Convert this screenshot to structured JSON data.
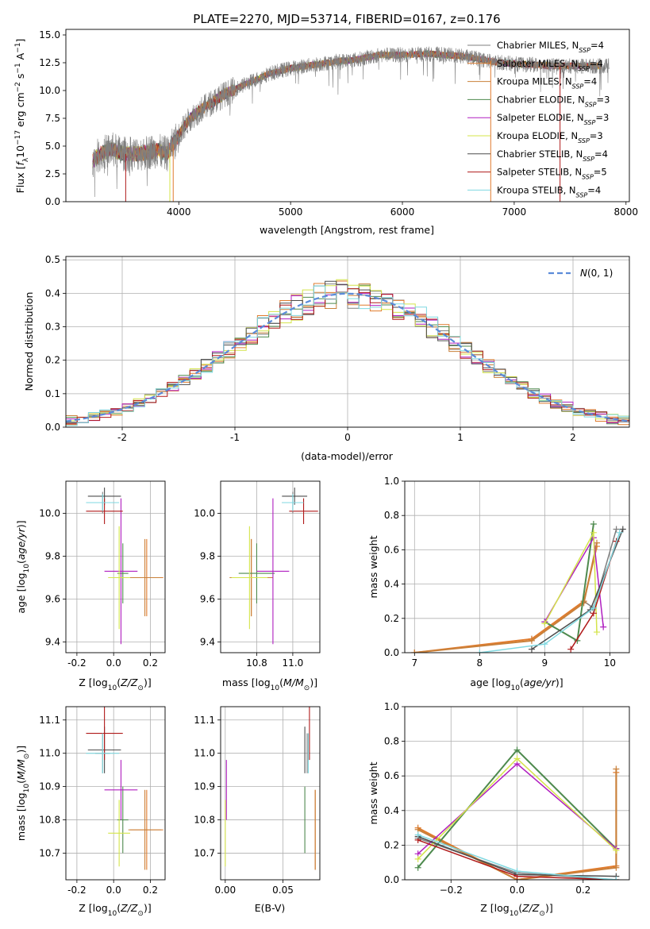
{
  "chart_data": [
    {
      "id": "spectrum",
      "type": "line",
      "title": "PLATE=2270, MJD=53714, FIBERID=0167, z=0.176",
      "xlabel": "wavelength [Angstrom, rest frame]",
      "ylabel": "Flux [f_λ10^-17 erg cm^-2 s^-1 A^-1]",
      "xlim": [
        2990,
        8030
      ],
      "ylim": [
        0,
        15.5
      ],
      "xticks": [
        4000,
        5000,
        6000,
        7000,
        8000
      ],
      "yticks": [
        0.0,
        2.5,
        5.0,
        7.5,
        10.0,
        12.5,
        15.0
      ],
      "legend_position": "top-right",
      "series": [
        {
          "name": "Chabrier MILES",
          "nssp": "4",
          "color": "#7f7f7f"
        },
        {
          "name": "Salpeter MILES",
          "nssp": "4",
          "color": "#e07b2d"
        },
        {
          "name": "Kroupa MILES",
          "nssp": "4",
          "color": "#c9803a"
        },
        {
          "name": "Chabrier ELODIE",
          "nssp": "3",
          "color": "#4e8a4e"
        },
        {
          "name": "Salpeter ELODIE",
          "nssp": "3",
          "color": "#b01fc0"
        },
        {
          "name": "Kroupa ELODIE",
          "nssp": "3",
          "color": "#d4e44a"
        },
        {
          "name": "Chabrier STELIB",
          "nssp": "4",
          "color": "#4d4d4d"
        },
        {
          "name": "Salpeter STELIB",
          "nssp": "5",
          "color": "#b01a1a"
        },
        {
          "name": "Kroupa STELIB",
          "nssp": "4",
          "color": "#7fd8e0"
        }
      ],
      "continuum": {
        "x": [
          3230,
          3300,
          3400,
          3500,
          3600,
          3700,
          3800,
          3900,
          4000,
          4100,
          4200,
          4400,
          4600,
          4800,
          5000,
          5200,
          5400,
          5600,
          5800,
          6000,
          6200,
          6400,
          6600,
          6800,
          7000,
          7200,
          7400,
          7600,
          7850
        ],
        "y": [
          3.7,
          4.3,
          4.7,
          4.3,
          4.3,
          4.4,
          4.6,
          4.3,
          6.0,
          7.5,
          8.3,
          9.6,
          10.6,
          11.5,
          12.0,
          12.3,
          12.6,
          12.8,
          13.2,
          13.2,
          13.3,
          13.2,
          13.0,
          12.6,
          12.4,
          12.3,
          12.2,
          12.2,
          12.2
        ]
      }
    },
    {
      "id": "residuals",
      "type": "line",
      "xlabel": "(data-model)/error",
      "ylabel": "Normed distribution",
      "xlim": [
        -2.5,
        2.5
      ],
      "ylim": [
        0,
        0.51
      ],
      "xticks": [
        -2,
        -1,
        0,
        1,
        2
      ],
      "yticks": [
        0.0,
        0.1,
        0.2,
        0.3,
        0.4,
        0.5
      ],
      "legend_label": "N(0,1)",
      "legend_position": "top-right",
      "gaussian": {
        "mean": 0,
        "sigma": 1,
        "color": "#5b8bd9"
      },
      "histogram_bin_width": 0.1
    },
    {
      "id": "age_vs_Z",
      "type": "scatter",
      "xlabel": "Z [log10(Z/Z_sun)]",
      "ylabel": "age  [log10(age/yr)]",
      "xlim": [
        -0.26,
        0.28
      ],
      "ylim": [
        9.35,
        10.15
      ],
      "xticks": [
        -0.2,
        0.0,
        0.2
      ],
      "yticks": [
        9.4,
        9.6,
        9.8,
        10.0
      ]
    },
    {
      "id": "age_vs_mass",
      "type": "scatter",
      "xlabel": "mass [log10(M/M_sun)]",
      "xlim": [
        10.6,
        11.15
      ],
      "ylim": [
        9.35,
        10.15
      ],
      "xticks": [
        10.8,
        11.0
      ],
      "yticks": [
        9.4,
        9.6,
        9.8,
        10.0
      ]
    },
    {
      "id": "massweight_vs_age",
      "type": "line",
      "xlabel": "age  [log10(age/yr)]",
      "ylabel": "mass weight",
      "xlim": [
        6.85,
        10.3
      ],
      "ylim": [
        0,
        1.0
      ],
      "xticks": [
        7,
        8,
        9,
        10
      ],
      "yticks": [
        0.0,
        0.2,
        0.4,
        0.6,
        0.8,
        1.0
      ]
    },
    {
      "id": "mass_vs_Z",
      "type": "scatter",
      "xlabel": "Z [log10(Z/Z_sun)]",
      "ylabel": "mass [log10(M/M_sun)]",
      "xlim": [
        -0.26,
        0.28
      ],
      "ylim": [
        10.62,
        11.14
      ],
      "xticks": [
        -0.2,
        0.0,
        0.2
      ],
      "yticks": [
        10.7,
        10.8,
        10.9,
        11.0,
        11.1
      ]
    },
    {
      "id": "mass_vs_ebv",
      "type": "scatter",
      "xlabel": "E(B-V)",
      "xlim": [
        -0.004,
        0.082
      ],
      "ylim": [
        10.62,
        11.14
      ],
      "xticks": [
        0.0,
        0.05
      ],
      "yticks": [
        10.7,
        10.8,
        10.9,
        11.0,
        11.1
      ]
    },
    {
      "id": "massweight_vs_Z",
      "type": "line",
      "xlabel": "Z [log10(Z/Z_sun)]",
      "ylabel": "mass weight",
      "xlim": [
        -0.34,
        0.34
      ],
      "ylim": [
        0,
        1.0
      ],
      "xticks": [
        -0.2,
        0.0,
        0.2
      ],
      "yticks": [
        0.0,
        0.2,
        0.4,
        0.6,
        0.8,
        1.0
      ]
    }
  ],
  "models": [
    {
      "name": "Chabrier MILES",
      "color": "#7f7f7f",
      "Z": -0.06,
      "Zerr": 0.04,
      "age": 10.05,
      "ageerr": 0.05,
      "mass": 11.0,
      "masserr": 0.06,
      "ebv": 0.071,
      "wAge": [
        [
          8.8,
          0.08
        ],
        [
          9.6,
          0.3
        ],
        [
          9.75,
          0.26
        ],
        [
          10.1,
          0.72
        ]
      ],
      "wZ": [
        [
          -0.3,
          0.24
        ],
        [
          0.0,
          0.04
        ],
        [
          0.3,
          0.0
        ]
      ]
    },
    {
      "name": "Salpeter MILES",
      "color": "#e07b2d",
      "Z": 0.18,
      "Zerr": 0.09,
      "age": 9.7,
      "ageerr": 0.18,
      "mass": 10.77,
      "masserr": 0.12,
      "ebv": 0.078,
      "wAge": [
        [
          7.0,
          0.0
        ],
        [
          8.8,
          0.08
        ],
        [
          9.6,
          0.3
        ],
        [
          9.8,
          0.62
        ]
      ],
      "wZ": [
        [
          -0.3,
          0.3
        ],
        [
          0.0,
          0.0
        ],
        [
          0.3,
          0.08
        ],
        [
          0.3,
          0.62
        ]
      ]
    },
    {
      "name": "Kroupa MILES",
      "color": "#c9803a",
      "Z": 0.17,
      "Zerr": 0.09,
      "age": 9.7,
      "ageerr": 0.18,
      "mass": 10.77,
      "masserr": 0.12,
      "ebv": 0.078,
      "wAge": [
        [
          7.0,
          0.0
        ],
        [
          8.8,
          0.07
        ],
        [
          9.6,
          0.29
        ],
        [
          9.8,
          0.64
        ]
      ],
      "wZ": [
        [
          -0.3,
          0.29
        ],
        [
          0.0,
          0.0
        ],
        [
          0.3,
          0.07
        ],
        [
          0.3,
          0.64
        ]
      ]
    },
    {
      "name": "Chabrier ELODIE",
      "color": "#4e8a4e",
      "Z": 0.05,
      "Zerr": 0.03,
      "age": 9.72,
      "ageerr": 0.14,
      "mass": 10.8,
      "masserr": 0.1,
      "ebv": 0.069,
      "wAge": [
        [
          9.0,
          0.18
        ],
        [
          9.5,
          0.07
        ],
        [
          9.75,
          0.75
        ]
      ],
      "wZ": [
        [
          -0.3,
          0.07
        ],
        [
          0.0,
          0.75
        ],
        [
          0.3,
          0.18
        ]
      ]
    },
    {
      "name": "Salpeter ELODIE",
      "color": "#b01fc0",
      "Z": 0.04,
      "Zerr": 0.09,
      "age": 9.73,
      "ageerr": 0.34,
      "mass": 10.89,
      "masserr": 0.09,
      "ebv": 0.001,
      "wAge": [
        [
          9.0,
          0.18
        ],
        [
          9.75,
          0.67
        ],
        [
          9.9,
          0.15
        ]
      ],
      "wZ": [
        [
          -0.3,
          0.15
        ],
        [
          0.0,
          0.67
        ],
        [
          0.3,
          0.18
        ]
      ]
    },
    {
      "name": "Kroupa ELODIE",
      "color": "#d4e44a",
      "Z": 0.03,
      "Zerr": 0.06,
      "age": 9.7,
      "ageerr": 0.24,
      "mass": 10.76,
      "masserr": 0.1,
      "ebv": 0.0,
      "wAge": [
        [
          9.0,
          0.17
        ],
        [
          9.75,
          0.7
        ],
        [
          9.8,
          0.12
        ]
      ],
      "wZ": [
        [
          -0.3,
          0.12
        ],
        [
          0.0,
          0.7
        ],
        [
          0.3,
          0.17
        ]
      ]
    },
    {
      "name": "Chabrier STELIB",
      "color": "#4d4d4d",
      "Z": -0.05,
      "Zerr": 0.09,
      "age": 10.08,
      "ageerr": 0.04,
      "mass": 11.01,
      "masserr": 0.07,
      "ebv": 0.069,
      "wAge": [
        [
          8.8,
          0.02
        ],
        [
          9.7,
          0.25
        ],
        [
          10.2,
          0.72
        ]
      ],
      "wZ": [
        [
          -0.3,
          0.25
        ],
        [
          0.0,
          0.03
        ],
        [
          0.3,
          0.02
        ]
      ]
    },
    {
      "name": "Salpeter STELIB",
      "color": "#b01a1a",
      "Z": -0.05,
      "Zerr": 0.1,
      "age": 10.01,
      "ageerr": 0.06,
      "mass": 11.06,
      "masserr": 0.08,
      "ebv": 0.073,
      "wAge": [
        [
          9.4,
          0.02
        ],
        [
          9.75,
          0.23
        ],
        [
          10.1,
          0.65
        ]
      ],
      "wZ": [
        [
          -0.3,
          0.23
        ],
        [
          0.0,
          0.02
        ],
        [
          0.3,
          0.0
        ]
      ]
    },
    {
      "name": "Kroupa STELIB",
      "color": "#7fd8e0",
      "Z": -0.06,
      "Zerr": 0.09,
      "age": 10.05,
      "ageerr": 0.04,
      "mass": 11.0,
      "masserr": 0.06,
      "ebv": 0.072,
      "wAge": [
        [
          8.0,
          0.0
        ],
        [
          9.0,
          0.05
        ],
        [
          9.75,
          0.26
        ],
        [
          10.15,
          0.7
        ]
      ],
      "wZ": [
        [
          -0.3,
          0.26
        ],
        [
          0.0,
          0.05
        ],
        [
          0.3,
          0.0
        ]
      ]
    }
  ]
}
